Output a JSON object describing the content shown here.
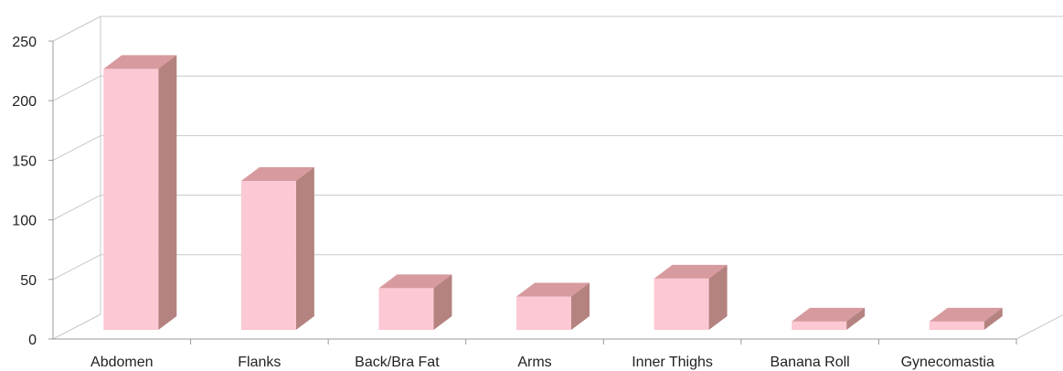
{
  "chart_data": {
    "type": "bar",
    "title": "",
    "xlabel": "",
    "ylabel": "",
    "categories": [
      "Abdomen",
      "Flanks",
      "Back/Bra Fat",
      "Arms",
      "Inner Thighs",
      "Banana Roll",
      "Gynecomastia"
    ],
    "values": [
      219,
      125,
      35,
      28,
      43,
      7,
      7
    ],
    "ylim": [
      0,
      250
    ],
    "yticks": [
      "0",
      "50",
      "100",
      "150",
      "200",
      "250"
    ],
    "grid": true,
    "legend": "none",
    "style": "3d-column"
  },
  "colors": {
    "bar_front": "#fcc8d3",
    "bar_top": "#d79a9e",
    "bar_side": "#b4827f",
    "grid": "#c8c8c8",
    "axis": "#9a9a9a"
  }
}
